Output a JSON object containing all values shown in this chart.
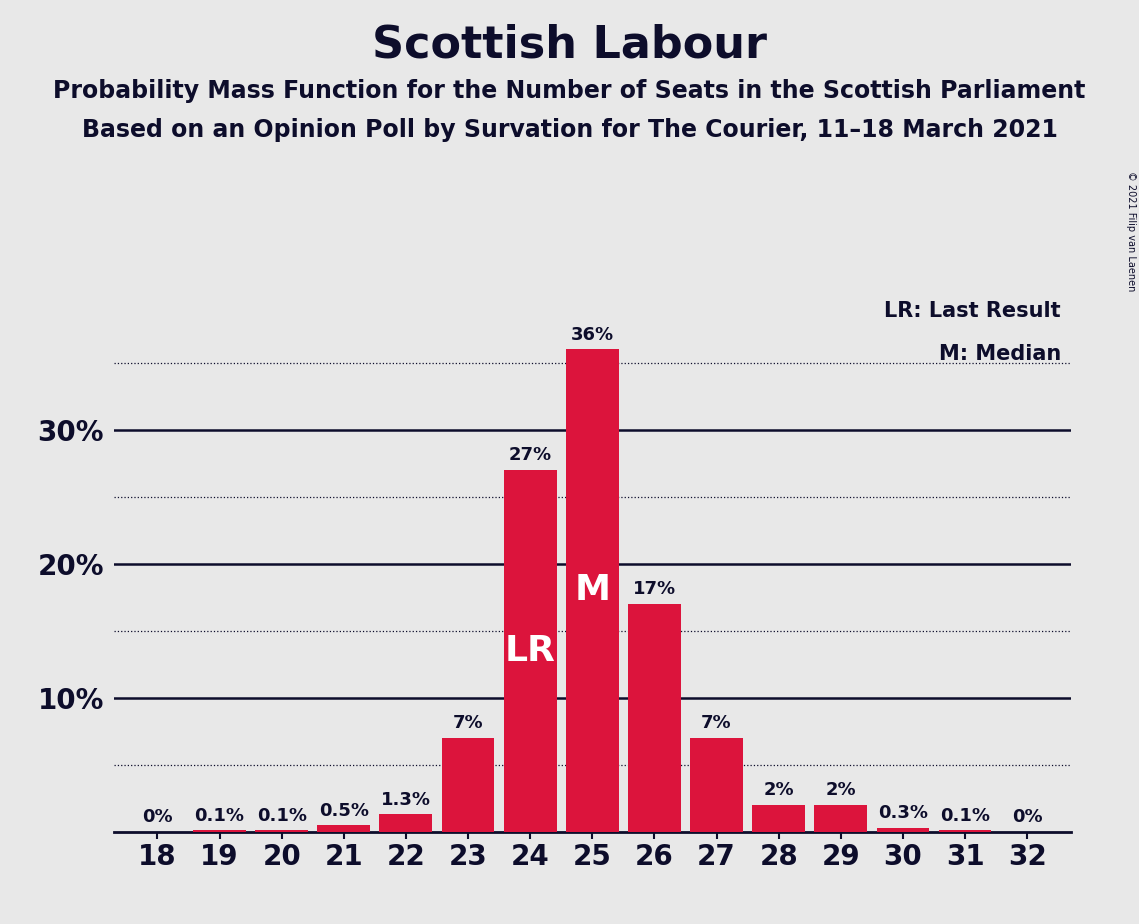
{
  "title": "Scottish Labour",
  "subtitle1": "Probability Mass Function for the Number of Seats in the Scottish Parliament",
  "subtitle2": "Based on an Opinion Poll by Survation for The Courier, 11–18 March 2021",
  "copyright": "© 2021 Filip van Laenen",
  "categories": [
    18,
    19,
    20,
    21,
    22,
    23,
    24,
    25,
    26,
    27,
    28,
    29,
    30,
    31,
    32
  ],
  "values": [
    0.0,
    0.1,
    0.1,
    0.5,
    1.3,
    7.0,
    27.0,
    36.0,
    17.0,
    7.0,
    2.0,
    2.0,
    0.3,
    0.1,
    0.0
  ],
  "bar_color": "#DC143C",
  "background_color": "#E8E8E8",
  "text_color": "#0D0D2B",
  "title_fontsize": 32,
  "subtitle_fontsize": 17,
  "ytick_labels": [
    "",
    "10%",
    "20%",
    "30%"
  ],
  "ytick_values": [
    0,
    10,
    20,
    30
  ],
  "ylim": [
    0,
    40
  ],
  "lr_bar": 24,
  "median_bar": 25,
  "legend_text_lr": "LR: Last Result",
  "legend_text_m": "M: Median",
  "bar_label_fontsize": 13,
  "bar_label_color_dark": "#0D0D2B",
  "bar_label_color_light": "#FFFFFF",
  "lr_label": "LR",
  "m_label": "M",
  "grid_dotted": [
    5,
    15,
    25,
    35
  ],
  "grid_solid": [
    10,
    20,
    30
  ]
}
